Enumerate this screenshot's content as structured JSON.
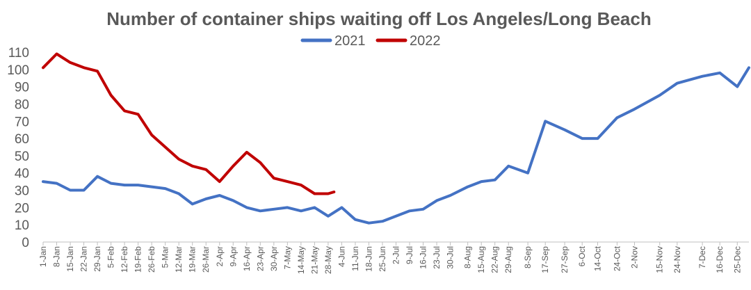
{
  "chart_data": {
    "type": "line",
    "title": "Number of container ships waiting off Los Angeles/Long Beach",
    "xlabel": "",
    "ylabel": "",
    "ylim": [
      0,
      110
    ],
    "yticks": [
      0,
      10,
      20,
      30,
      40,
      50,
      60,
      70,
      80,
      90,
      100,
      110
    ],
    "xticks": [
      "1-Jan",
      "8-Jan",
      "15-Jan",
      "22-Jan",
      "29-Jan",
      "5-Feb",
      "12-Feb",
      "19-Feb",
      "26-Feb",
      "5-Mar",
      "12-Mar",
      "19-Mar",
      "26-Mar",
      "2-Apr",
      "9-Apr",
      "16-Apr",
      "23-Apr",
      "30-Apr",
      "7-May",
      "14-May",
      "21-May",
      "28-May",
      "4-Jun",
      "11-Jun",
      "18-Jun",
      "25-Jun",
      "2-Jul",
      "9-Jul",
      "16-Jul",
      "23-Jul",
      "30-Jul",
      "8-Aug",
      "15-Aug",
      "22-Aug",
      "29-Aug",
      "8-Sep",
      "17-Sep",
      "27-Sep",
      "6-Oct",
      "14-Oct",
      "24-Oct",
      "2-Nov",
      "15-Nov",
      "24-Nov",
      "7-Dec",
      "16-Dec",
      "25-Dec"
    ],
    "grid": false,
    "legend": "top",
    "series": [
      {
        "name": "2021",
        "color": "#4472C4",
        "x": [
          "1-Jan",
          "8-Jan",
          "15-Jan",
          "22-Jan",
          "29-Jan",
          "5-Feb",
          "12-Feb",
          "19-Feb",
          "26-Feb",
          "5-Mar",
          "12-Mar",
          "19-Mar",
          "26-Mar",
          "2-Apr",
          "9-Apr",
          "16-Apr",
          "23-Apr",
          "30-Apr",
          "7-May",
          "14-May",
          "21-May",
          "28-May",
          "4-Jun",
          "11-Jun",
          "18-Jun",
          "25-Jun",
          "2-Jul",
          "9-Jul",
          "16-Jul",
          "23-Jul",
          "30-Jul",
          "8-Aug",
          "15-Aug",
          "22-Aug",
          "29-Aug",
          "8-Sep",
          "17-Sep",
          "27-Sep",
          "6-Oct",
          "14-Oct",
          "24-Oct",
          "2-Nov",
          "15-Nov",
          "24-Nov",
          "7-Dec",
          "16-Dec",
          "25-Dec",
          "31-Dec"
        ],
        "values": [
          35,
          34,
          30,
          30,
          38,
          34,
          33,
          33,
          32,
          31,
          28,
          22,
          25,
          27,
          24,
          20,
          18,
          19,
          20,
          18,
          20,
          15,
          20,
          13,
          11,
          12,
          15,
          18,
          19,
          24,
          27,
          32,
          35,
          36,
          44,
          40,
          70,
          65,
          60,
          60,
          72,
          77,
          85,
          92,
          96,
          98,
          90,
          101
        ]
      },
      {
        "name": "2022",
        "color": "#C00000",
        "x": [
          "1-Jan",
          "8-Jan",
          "15-Jan",
          "22-Jan",
          "29-Jan",
          "5-Feb",
          "12-Feb",
          "19-Feb",
          "26-Feb",
          "5-Mar",
          "12-Mar",
          "19-Mar",
          "26-Mar",
          "2-Apr",
          "9-Apr",
          "16-Apr",
          "23-Apr",
          "30-Apr",
          "7-May",
          "14-May",
          "21-May",
          "28-May",
          "31-May"
        ],
        "values": [
          101,
          109,
          104,
          101,
          99,
          85,
          76,
          74,
          62,
          55,
          48,
          44,
          42,
          35,
          44,
          52,
          46,
          37,
          35,
          33,
          28,
          28,
          29
        ]
      }
    ]
  }
}
